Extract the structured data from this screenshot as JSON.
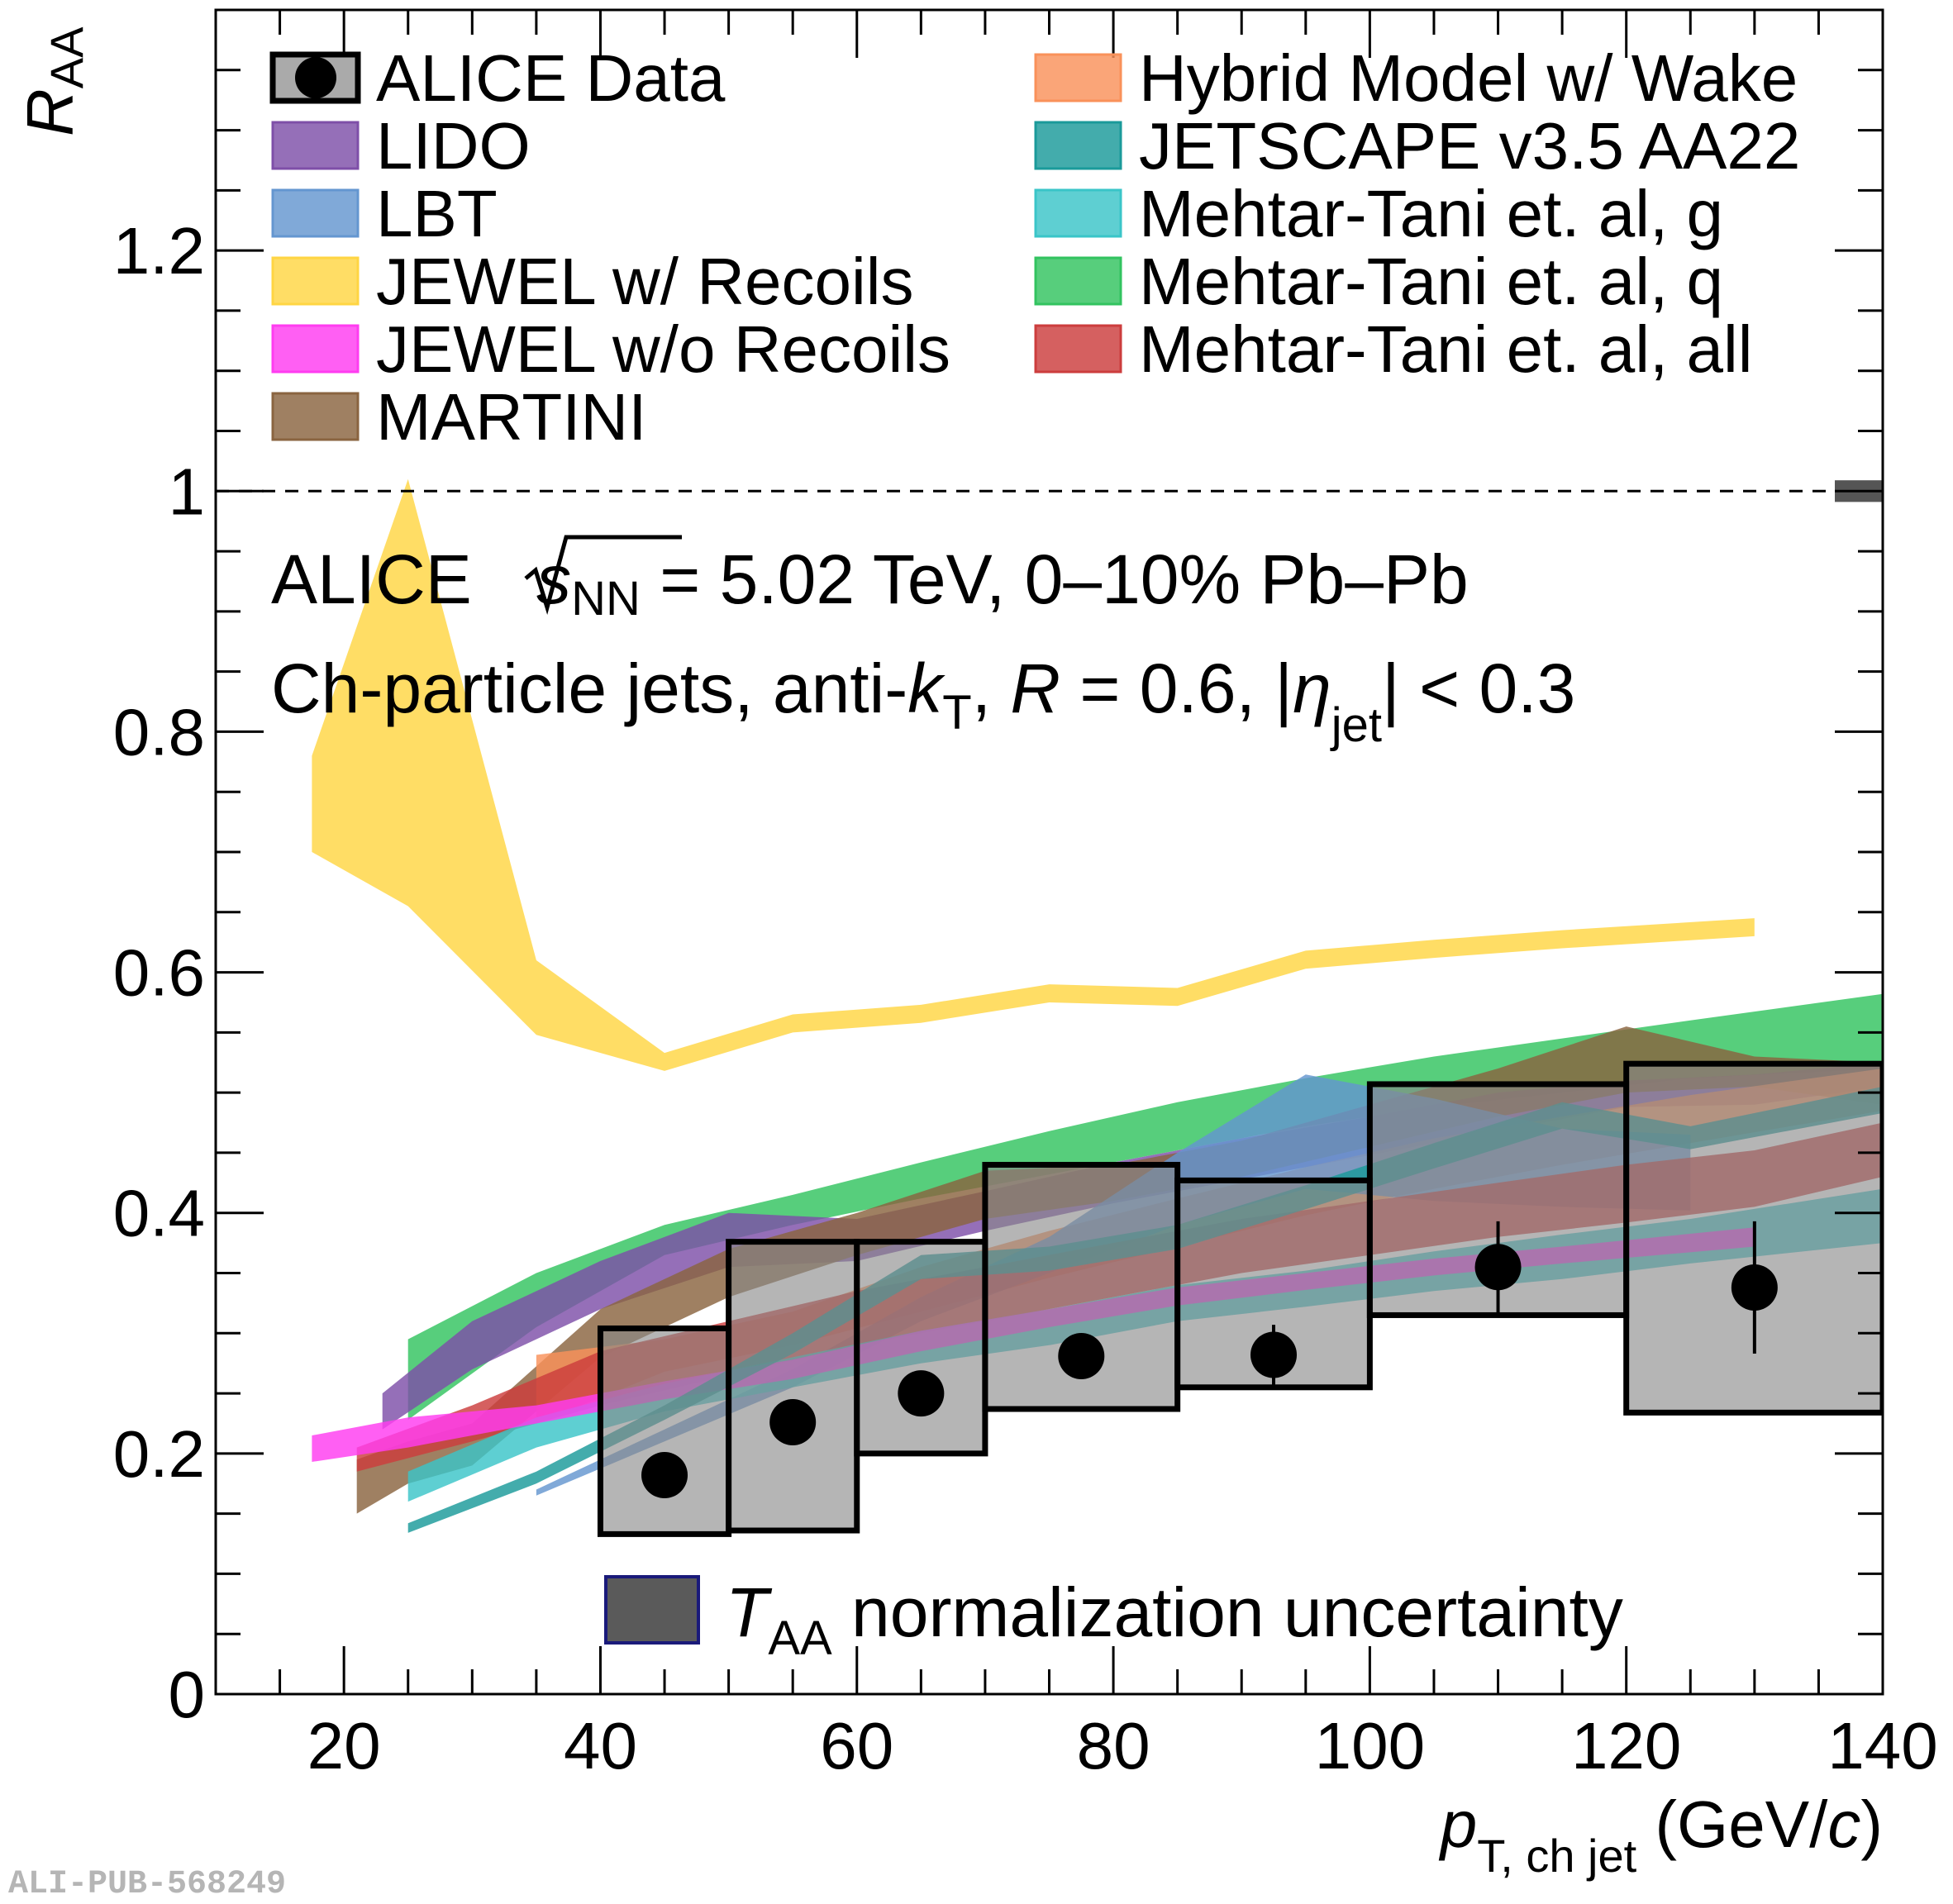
{
  "chart_data": {
    "type": "area",
    "title": "",
    "xlabel": {
      "main": "p",
      "sub": "T, ch jet",
      "unit_pre": " (GeV/",
      "unit_var": "c",
      "unit_post": ")"
    },
    "ylabel": {
      "main": "R",
      "sub": "AA"
    },
    "xlim": [
      10,
      140
    ],
    "ylim": [
      0,
      1.4
    ],
    "xticks": [
      20,
      40,
      60,
      80,
      100,
      120,
      140
    ],
    "xtick_labels": [
      "20",
      "40",
      "60",
      "80",
      "100",
      "120",
      "140"
    ],
    "yticks": [
      0,
      0.2,
      0.4,
      0.6,
      0.8,
      1,
      1.2
    ],
    "ytick_labels": [
      "0",
      "0.2",
      "0.4",
      "0.6",
      "0.8",
      "1",
      "1.2"
    ],
    "reference_line": 1.0,
    "annotations": {
      "line1_pre": "ALICE ",
      "line1_s": "s",
      "line1_nn": "NN",
      "line1_post": " = 5.02 TeV, 0–10% Pb–Pb",
      "line2_a": "Ch-particle jets, anti-",
      "line2_k": "k",
      "line2_t": "T",
      "line2_b": ", ",
      "line2_r": "R",
      "line2_c": " = 0.6, |",
      "line2_eta": "η",
      "line2_jet": "jet",
      "line2_d": "| < 0.3",
      "taa_T": "T",
      "taa_sub": "AA",
      "taa_text": " normalization uncertainty",
      "watermark": "ALI-PUB-568249"
    },
    "data_series": {
      "name": "ALICE Data",
      "points": [
        {
          "x": 45,
          "xlow": 40,
          "xhigh": 50,
          "y": 0.182,
          "stat": 0.012,
          "syslow": 0.133,
          "syshigh": 0.304
        },
        {
          "x": 55,
          "xlow": 50,
          "xhigh": 60,
          "y": 0.226,
          "stat": 0.012,
          "syslow": 0.136,
          "syshigh": 0.376
        },
        {
          "x": 65,
          "xlow": 60,
          "xhigh": 70,
          "y": 0.25,
          "stat": 0.012,
          "syslow": 0.2,
          "syshigh": 0.376
        },
        {
          "x": 77.5,
          "xlow": 70,
          "xhigh": 85,
          "y": 0.281,
          "stat": 0.012,
          "syslow": 0.237,
          "syshigh": 0.44
        },
        {
          "x": 92.5,
          "xlow": 85,
          "xhigh": 100,
          "y": 0.282,
          "stat": 0.025,
          "syslow": 0.255,
          "syshigh": 0.427
        },
        {
          "x": 110,
          "xlow": 100,
          "xhigh": 120,
          "y": 0.355,
          "stat": 0.038,
          "syslow": 0.315,
          "syshigh": 0.507
        },
        {
          "x": 130,
          "xlow": 120,
          "xhigh": 140,
          "y": 0.338,
          "stat": 0.055,
          "syslow": 0.234,
          "syshigh": 0.524
        }
      ]
    },
    "taa_box": {
      "x": 140,
      "ylow": 0.991,
      "yhigh": 1.009
    },
    "series": [
      {
        "name": "JEWEL w/ Recoils",
        "color": "#ffd543",
        "x": [
          17.5,
          25,
          35,
          45,
          55,
          65,
          75,
          85,
          95,
          105,
          115,
          130
        ],
        "low": [
          0.7,
          0.655,
          0.548,
          0.518,
          0.55,
          0.558,
          0.575,
          0.572,
          0.603,
          0.612,
          0.62,
          0.63
        ],
        "high": [
          0.78,
          1.01,
          0.61,
          0.533,
          0.565,
          0.573,
          0.59,
          0.587,
          0.618,
          0.627,
          0.635,
          0.645
        ]
      },
      {
        "name": "Mehtar-Tani et. al, q",
        "color": "#32c35f",
        "x": [
          25,
          35,
          45,
          55,
          65,
          75,
          85,
          95,
          105,
          115,
          125,
          140
        ],
        "low": [
          0.228,
          0.305,
          0.365,
          0.39,
          0.412,
          0.432,
          0.452,
          0.472,
          0.488,
          0.5,
          0.512,
          0.52
        ],
        "high": [
          0.295,
          0.35,
          0.39,
          0.415,
          0.442,
          0.468,
          0.492,
          0.512,
          0.53,
          0.545,
          0.56,
          0.582
        ]
      },
      {
        "name": "LIDO",
        "color": "#7e4fa8",
        "x": [
          23,
          30,
          40,
          50,
          60,
          70,
          80,
          90,
          100,
          110,
          120,
          130,
          140
        ],
        "low": [
          0.22,
          0.27,
          0.32,
          0.355,
          0.36,
          0.385,
          0.408,
          0.428,
          0.448,
          0.468,
          0.488,
          0.49,
          0.505
        ],
        "high": [
          0.25,
          0.31,
          0.36,
          0.4,
          0.395,
          0.418,
          0.442,
          0.462,
          0.48,
          0.5,
          0.51,
          0.515,
          0.525
        ]
      },
      {
        "name": "MARTINI",
        "color": "#8a6440",
        "x": [
          21,
          25,
          30,
          40,
          50,
          60,
          70,
          80,
          90,
          100,
          110,
          120,
          130,
          140
        ],
        "low": [
          0.15,
          0.175,
          0.19,
          0.28,
          0.33,
          0.365,
          0.395,
          0.41,
          0.43,
          0.455,
          0.48,
          0.5,
          0.505,
          0.49
        ],
        "high": [
          0.195,
          0.21,
          0.225,
          0.32,
          0.37,
          0.4,
          0.435,
          0.44,
          0.46,
          0.49,
          0.52,
          0.555,
          0.53,
          0.525
        ]
      },
      {
        "name": "Hybrid Model w/ Wake",
        "color": "#f9915a",
        "x": [
          35,
          45,
          55,
          65,
          75,
          85,
          95,
          105,
          115,
          125,
          140
        ],
        "low": [
          0.225,
          0.268,
          0.29,
          0.318,
          0.346,
          0.372,
          0.398,
          0.42,
          0.44,
          0.458,
          0.485
        ],
        "high": [
          0.282,
          0.295,
          0.318,
          0.355,
          0.385,
          0.412,
          0.438,
          0.462,
          0.48,
          0.498,
          0.52
        ]
      },
      {
        "name": "LBT",
        "color": "#6496d0",
        "x": [
          35,
          45,
          55,
          65,
          75,
          85,
          95,
          105,
          115,
          125
        ],
        "low": [
          0.165,
          0.21,
          0.255,
          0.31,
          0.35,
          0.39,
          0.42,
          0.41,
          0.405,
          0.402
        ],
        "high": [
          0.17,
          0.22,
          0.27,
          0.33,
          0.38,
          0.45,
          0.515,
          0.495,
          0.47,
          0.465
        ]
      },
      {
        "name": "Mehtar-Tani et. al, all",
        "color": "#cc3d3d",
        "x": [
          21,
          30,
          40,
          50,
          60,
          70,
          80,
          90,
          100,
          110,
          120,
          130,
          140
        ],
        "low": [
          0.185,
          0.21,
          0.24,
          0.265,
          0.29,
          0.31,
          0.33,
          0.35,
          0.365,
          0.38,
          0.392,
          0.405,
          0.43
        ],
        "high": [
          0.205,
          0.24,
          0.285,
          0.31,
          0.335,
          0.355,
          0.375,
          0.395,
          0.41,
          0.425,
          0.44,
          0.452,
          0.475
        ]
      },
      {
        "name": "Mehtar-Tani et. al, g",
        "color": "#3ac5c8",
        "x": [
          25,
          35,
          45,
          55,
          65,
          75,
          85,
          95,
          105,
          115,
          125,
          140
        ],
        "low": [
          0.16,
          0.205,
          0.235,
          0.255,
          0.275,
          0.29,
          0.31,
          0.322,
          0.335,
          0.345,
          0.358,
          0.375
        ],
        "high": [
          0.185,
          0.23,
          0.258,
          0.28,
          0.302,
          0.32,
          0.34,
          0.352,
          0.368,
          0.382,
          0.395,
          0.42
        ]
      },
      {
        "name": "JEWEL w/o Recoils",
        "color": "#ff3cf0",
        "x": [
          17.5,
          25,
          35,
          45,
          55,
          65,
          75,
          85,
          95,
          105,
          115,
          130
        ],
        "low": [
          0.193,
          0.205,
          0.225,
          0.245,
          0.262,
          0.285,
          0.305,
          0.323,
          0.336,
          0.348,
          0.358,
          0.372
        ],
        "high": [
          0.215,
          0.23,
          0.24,
          0.26,
          0.278,
          0.302,
          0.32,
          0.338,
          0.35,
          0.362,
          0.372,
          0.388
        ]
      },
      {
        "name": "JETSCAPE v3.5 AA22",
        "color": "#1a9a9a",
        "x": [
          25,
          35,
          45,
          55,
          65,
          75,
          85,
          95,
          105,
          115,
          125,
          140
        ],
        "low": [
          0.134,
          0.175,
          0.228,
          0.283,
          0.345,
          0.352,
          0.37,
          0.403,
          0.437,
          0.47,
          0.453,
          0.483
        ],
        "high": [
          0.142,
          0.185,
          0.24,
          0.3,
          0.365,
          0.372,
          0.39,
          0.423,
          0.458,
          0.492,
          0.472,
          0.505
        ]
      }
    ],
    "legend": {
      "placement": "top",
      "left_column": [
        "ALICE Data",
        "LIDO",
        "LBT",
        "JEWEL w/ Recoils",
        "JEWEL w/o Recoils",
        "MARTINI"
      ],
      "right_column": [
        "Hybrid Model w/ Wake",
        "JETSCAPE v3.5 AA22",
        "Mehtar-Tani et. al, g",
        "Mehtar-Tani et. al, q",
        "Mehtar-Tani et. al, all"
      ]
    }
  }
}
